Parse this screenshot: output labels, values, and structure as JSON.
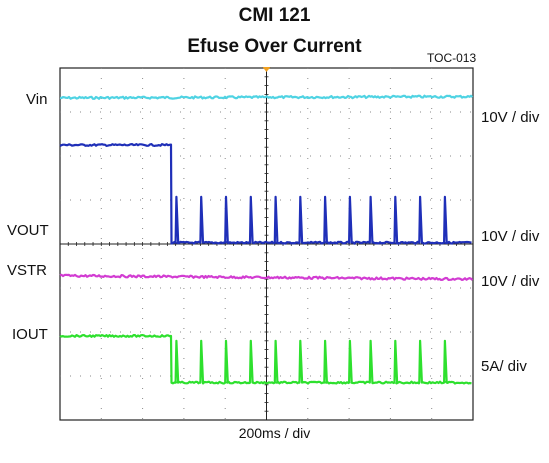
{
  "chart_data": {
    "type": "line",
    "title": "CMI  121",
    "subtitle": "Efuse Over Current",
    "figure_id": "TOC-013",
    "xlabel": "200ms / div",
    "x_divisions": 10,
    "y_divisions": 8,
    "grid": true,
    "colors": {
      "Vin": "#4fd3e3",
      "VOUT": "#1f2fb8",
      "VSTR": "#d23cd2",
      "IOUT": "#2ee02e"
    },
    "series": [
      {
        "name": "Vin",
        "scale": "10V / div",
        "color": "#4fd3e3",
        "level_div": 7.32,
        "level_div_end": 7.35,
        "fault_at_div": null
      },
      {
        "name": "VOUT",
        "scale": "10V / div",
        "color": "#1f2fb8",
        "level_div": 6.25,
        "low_div": 4.03,
        "spike_div": 5.07,
        "fault_at_div": 2.7,
        "pulse_times_div": [
          2.8,
          3.4,
          4.0,
          4.6,
          5.2,
          5.8,
          6.4,
          7.0,
          7.5,
          8.1,
          8.7,
          9.3
        ]
      },
      {
        "name": "VSTR",
        "scale": "10V / div",
        "color": "#d23cd2",
        "level_div": 3.28,
        "level_div_end": 3.2,
        "fault_at_div": null
      },
      {
        "name": "IOUT",
        "scale": "5A/ div",
        "color": "#2ee02e",
        "level_div": 1.91,
        "low_div": 0.85,
        "spike_div": 1.8,
        "fault_at_div": 2.7,
        "pulse_times_div": [
          2.8,
          3.4,
          4.0,
          4.6,
          5.2,
          5.8,
          6.4,
          7.0,
          7.5,
          8.1,
          8.7,
          9.3
        ]
      }
    ]
  }
}
